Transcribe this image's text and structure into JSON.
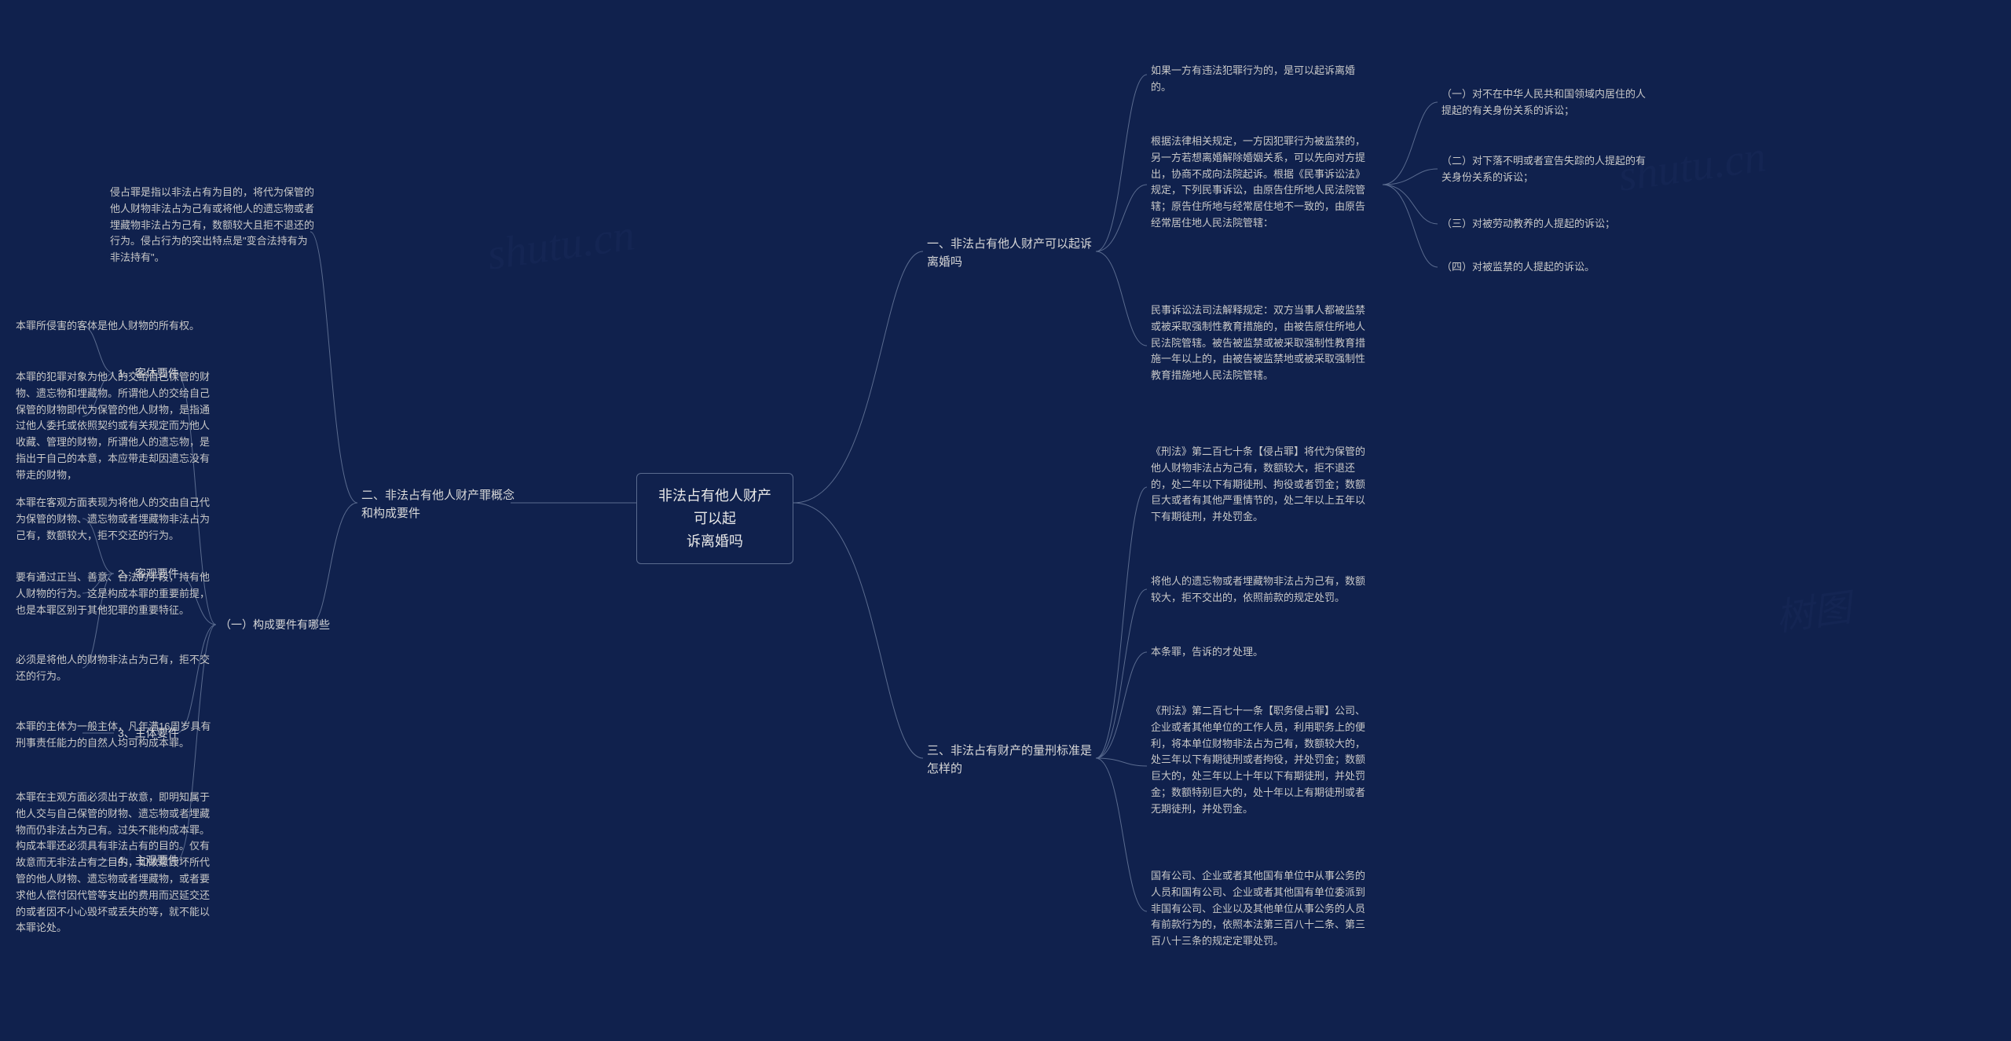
{
  "colors": {
    "background": "#10214d",
    "text_primary": "#e8e8e8",
    "text_secondary": "#d8d8d8",
    "text_leaf": "#c8c8c8",
    "border": "#5a6b8f",
    "connector": "#5a6b8f",
    "watermark": "#1a2d5c"
  },
  "typography": {
    "center_fontsize": 18,
    "branch_fontsize": 15,
    "leaf_fontsize": 13,
    "font_family": "Microsoft YaHei"
  },
  "watermarks": {
    "text1": "shutu.cn",
    "text2": "树图"
  },
  "center": {
    "title_l1": "非法占有他人财产可以起",
    "title_l2": "诉离婚吗"
  },
  "right": {
    "branch1": {
      "label": "一、非法占有他人财产可以起诉离婚吗",
      "leaves": [
        "如果一方有违法犯罪行为的，是可以起诉离婚的。",
        "根据法律相关规定，一方因犯罪行为被监禁的，另一方若想离婚解除婚姻关系，可以先向对方提出，协商不成向法院起诉。根据《民事诉讼法》规定，下列民事诉讼，由原告住所地人民法院管辖；原告住所地与经常居住地不一致的，由原告经常居住地人民法院管辖：",
        "民事诉讼法司法解释规定：双方当事人都被监禁或被采取强制性教育措施的，由被告原住所地人民法院管辖。被告被监禁或被采取强制性教育措施一年以上的，由被告被监禁地或被采取强制性教育措施地人民法院管辖。"
      ],
      "sublist": [
        "（一）对不在中华人民共和国领域内居住的人提起的有关身份关系的诉讼；",
        "（二）对下落不明或者宣告失踪的人提起的有关身份关系的诉讼；",
        "（三）对被劳动教养的人提起的诉讼；",
        "（四）对被监禁的人提起的诉讼。"
      ]
    },
    "branch3": {
      "label": "三、非法占有财产的量刑标准是怎样的",
      "leaves": [
        "《刑法》第二百七十条【侵占罪】将代为保管的他人财物非法占为己有，数额较大，拒不退还的，处二年以下有期徒刑、拘役或者罚金；数额巨大或者有其他严重情节的，处二年以上五年以下有期徒刑，并处罚金。",
        "将他人的遗忘物或者埋藏物非法占为己有，数额较大，拒不交出的，依照前款的规定处罚。",
        "本条罪，告诉的才处理。",
        "《刑法》第二百七十一条【职务侵占罪】公司、企业或者其他单位的工作人员，利用职务上的便利，将本单位财物非法占为己有，数额较大的，处三年以下有期徒刑或者拘役，并处罚金；数额巨大的，处三年以上十年以下有期徒刑，并处罚金；数额特别巨大的，处十年以上有期徒刑或者无期徒刑，并处罚金。",
        "国有公司、企业或者其他国有单位中从事公务的人员和国有公司、企业或者其他国有单位委派到非国有公司、企业以及其他单位从事公务的人员有前款行为的，依照本法第三百八十二条、第三百八十三条的规定定罪处罚。"
      ]
    }
  },
  "left": {
    "branch2": {
      "label": "二、非法占有他人财产罪概念和构成要件",
      "intro": "侵占罪是指以非法占有为目的，将代为保管的他人财物非法占为己有或将他人的遗忘物或者埋藏物非法占为己有，数额较大且拒不退还的行为。侵占行为的突出特点是\"变合法持有为非法持有\"。",
      "sub1_label": "（一）构成要件有哪些",
      "items": {
        "i1": {
          "label": "1、客体要件",
          "leaves": [
            "本罪所侵害的客体是他人财物的所有权。",
            "本罪的犯罪对象为他人的交给自己保管的财物、遗忘物和埋藏物。所谓他人的交给自己保管的财物即代为保管的他人财物，是指通过他人委托或依照契约或有关规定而为他人收藏、管理的财物，所谓他人的遗忘物，是指出于自己的本意，本应带走却因遗忘没有带走的财物，"
          ]
        },
        "i2": {
          "label": "2、客观要件",
          "leaves": [
            "本罪在客观方面表现为将他人的交由自己代为保管的财物、遗忘物或者埋藏物非法占为己有，数额较大，拒不交还的行为。",
            "要有通过正当、善意、合法的手段，持有他人财物的行为。这是构成本罪的重要前提，也是本罪区别于其他犯罪的重要特征。",
            "必须是将他人的财物非法占为己有，拒不交还的行为。"
          ]
        },
        "i3": {
          "label": "3、主体要件",
          "leaves": [
            "本罪的主体为一般主体，凡年满16周岁具有刑事责任能力的自然人均可构成本罪。"
          ]
        },
        "i4": {
          "label": "4、主观要件",
          "leaves": [
            "本罪在主观方面必须出于故意，即明知属于他人交与自己保管的财物、遗忘物或者埋藏物而仍非法占为己有。过失不能构成本罪。构成本罪还必须具有非法占有的目的。仅有故意而无非法占有之目的，如故意毁坏所代管的他人财物、遗忘物或者埋藏物，或者要求他人偿付因代管等支出的费用而迟延交还的或者因不小心毁坏或丢失的等，就不能以本罪论处。"
          ]
        }
      }
    }
  }
}
